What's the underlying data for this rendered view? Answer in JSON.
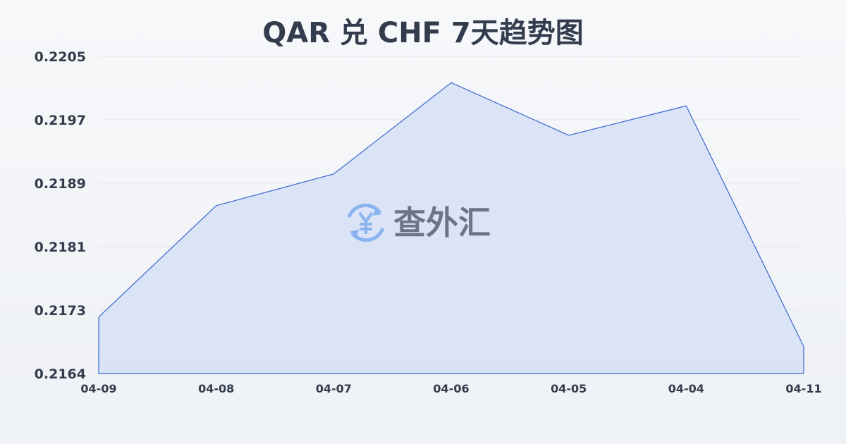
{
  "chart_data": {
    "type": "area",
    "title": "QAR 兑 CHF 7天趋势图",
    "categories": [
      "04-09",
      "04-08",
      "04-07",
      "04-06",
      "04-05",
      "04-04",
      "04-11"
    ],
    "values": [
      0.21713,
      0.21857,
      0.21898,
      0.22016,
      0.21948,
      0.21986,
      0.21675
    ],
    "yticks": [
      "0.2205",
      "0.2197",
      "0.2189",
      "0.2181",
      "0.2173",
      "0.2164"
    ],
    "ylim": [
      0.2164,
      0.2205
    ],
    "grid": true,
    "xlabel": "",
    "ylabel": "",
    "colors": {
      "line": "#3a66d0",
      "fill": "#d6e1f6"
    }
  },
  "watermark": {
    "text": "查外汇",
    "icon": "yen-exchange-icon",
    "icon_color": "#8bb3f0"
  }
}
